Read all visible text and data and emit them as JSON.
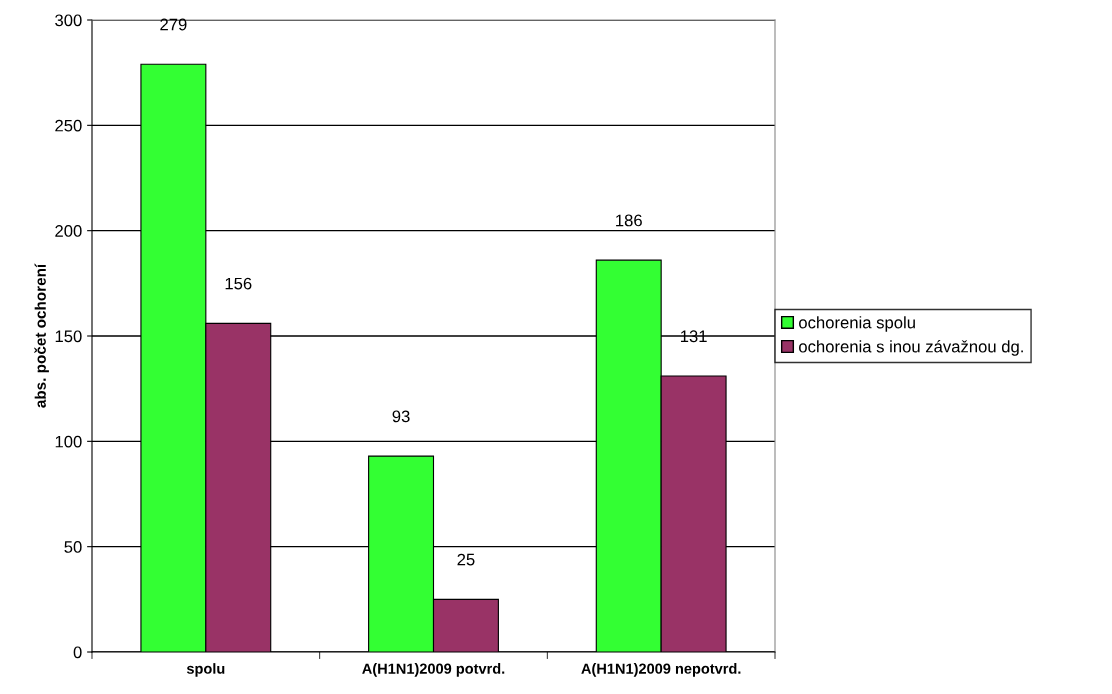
{
  "chart_data": {
    "type": "bar",
    "ylabel": "abs. počet ochorení",
    "categories": [
      "spolu",
      "A(H1N1)2009 potvrd.",
      "A(H1N1)2009 nepotvrd."
    ],
    "series": [
      {
        "name": "ochorenia spolu",
        "color": "#33ff33",
        "values": [
          279,
          93,
          186
        ]
      },
      {
        "name": "ochorenia s inou závažnou dg.",
        "color": "#993366",
        "values": [
          156,
          25,
          131
        ]
      }
    ],
    "ylim": [
      0,
      300
    ],
    "yticks": [
      0,
      50,
      100,
      150,
      200,
      250,
      300
    ],
    "grid": "y",
    "legend": "right",
    "data_labels": true
  }
}
